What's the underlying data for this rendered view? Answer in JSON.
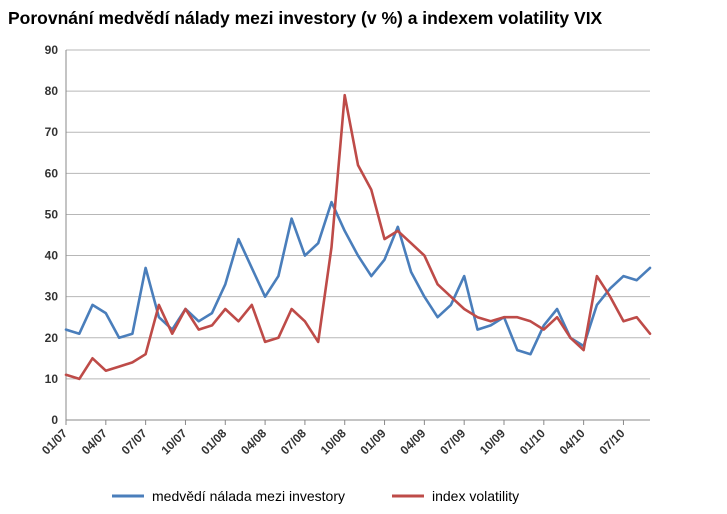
{
  "chart_data": {
    "type": "line",
    "title": "Porovnání medvědí nálady mezi investory (v %) a indexem volatility VIX",
    "xlabel": "",
    "ylabel": "",
    "ylim": [
      0,
      90
    ],
    "yticks": [
      0,
      10,
      20,
      30,
      40,
      50,
      60,
      70,
      80,
      90
    ],
    "xlim": [
      "01/07",
      "09/10"
    ],
    "x_tick_labels": [
      "01/07",
      "04/07",
      "07/07",
      "10/07",
      "01/08",
      "04/08",
      "07/08",
      "10/08",
      "01/09",
      "04/09",
      "07/09",
      "10/09",
      "01/10",
      "04/10",
      "07/10"
    ],
    "grid": "horizontal",
    "legend_position": "bottom",
    "x": [
      "01/07",
      "02/07",
      "03/07",
      "04/07",
      "05/07",
      "06/07",
      "07/07",
      "08/07",
      "09/07",
      "10/07",
      "11/07",
      "12/07",
      "01/08",
      "02/08",
      "03/08",
      "04/08",
      "05/08",
      "06/08",
      "07/08",
      "08/08",
      "09/08",
      "10/08",
      "11/08",
      "12/08",
      "01/09",
      "02/09",
      "03/09",
      "04/09",
      "05/09",
      "06/09",
      "07/09",
      "08/09",
      "09/09",
      "10/09",
      "11/09",
      "12/09",
      "01/10",
      "02/10",
      "03/10",
      "04/10",
      "05/10",
      "06/10",
      "07/10",
      "08/10",
      "09/10"
    ],
    "series": [
      {
        "name": "medvědí nálada mezi investory",
        "color": "#4a7ebb",
        "values": [
          22,
          21,
          28,
          26,
          20,
          21,
          37,
          25,
          22,
          27,
          24,
          26,
          33,
          44,
          37,
          30,
          35,
          49,
          40,
          43,
          53,
          46,
          40,
          35,
          39,
          47,
          36,
          30,
          25,
          28,
          35,
          22,
          23,
          25,
          17,
          16,
          23,
          27,
          20,
          18,
          28,
          32,
          35,
          34,
          37
        ]
      },
      {
        "name": "index volatility",
        "color": "#be4b48",
        "values": [
          11,
          10,
          15,
          12,
          13,
          14,
          16,
          28,
          21,
          27,
          22,
          23,
          27,
          24,
          28,
          19,
          20,
          27,
          24,
          19,
          42,
          79,
          62,
          56,
          44,
          46,
          43,
          40,
          33,
          30,
          27,
          25,
          24,
          25,
          25,
          24,
          22,
          25,
          20,
          17,
          35,
          30,
          24,
          25,
          21
        ]
      }
    ]
  }
}
